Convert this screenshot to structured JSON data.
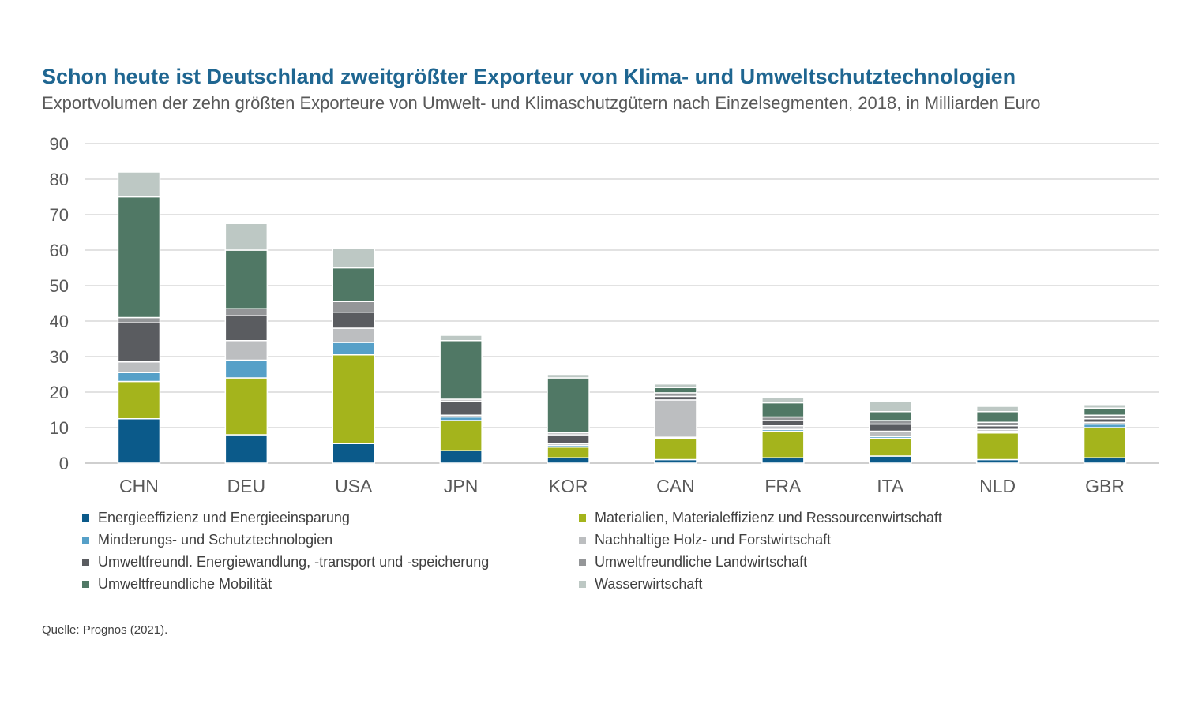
{
  "title": "Schon heute ist Deutschland zweitgrößter Exporteur von Klima- und Umweltschutztechnologien",
  "subtitle": "Exportvolumen der zehn größten Exporteure von Umwelt- und Klimaschutzgütern nach Einzelsegmenten, 2018, in Milliarden Euro",
  "source": "Quelle: Prognos (2021).",
  "chart_data": {
    "type": "bar",
    "stacked": true,
    "categories": [
      "CHN",
      "DEU",
      "USA",
      "JPN",
      "KOR",
      "CAN",
      "FRA",
      "ITA",
      "NLD",
      "GBR"
    ],
    "ylim": [
      0,
      90
    ],
    "yticks": [
      "0",
      "10",
      "20",
      "30",
      "40",
      "50",
      "60",
      "70",
      "80",
      "90"
    ],
    "grid": true,
    "legend_position": "bottom",
    "series": [
      {
        "name": "Energieeffizienz und Energieeinsparung",
        "color": "#0b5a8a",
        "values": [
          12.5,
          8.0,
          5.5,
          3.5,
          1.5,
          1.0,
          1.5,
          2.0,
          1.0,
          1.5
        ]
      },
      {
        "name": "Materialien, Materialeffizienz und Ressourcenwirtschaft",
        "color": "#a4b41c",
        "values": [
          10.5,
          16.0,
          25.0,
          8.5,
          3.0,
          6.0,
          7.5,
          5.0,
          7.5,
          8.5
        ]
      },
      {
        "name": "Minderungs- und Schutztechnologien",
        "color": "#56a0c8",
        "values": [
          2.5,
          5.0,
          3.5,
          1.0,
          0.5,
          0.3,
          0.5,
          0.5,
          0.5,
          1.0
        ]
      },
      {
        "name": "Nachhaltige Holz- und Forstwirtschaft",
        "color": "#bcbec0",
        "values": [
          3.0,
          5.5,
          4.0,
          0.5,
          0.5,
          10.5,
          1.0,
          1.5,
          0.5,
          0.5
        ]
      },
      {
        "name": "Umweltfreundl. Energiewandlung, -transport und -speicherung",
        "color": "#5a5c60",
        "values": [
          11.0,
          7.0,
          4.5,
          4.0,
          2.5,
          1.0,
          1.5,
          2.0,
          1.0,
          1.0
        ]
      },
      {
        "name": "Umweltfreundliche Landwirtschaft",
        "color": "#949698",
        "values": [
          1.5,
          2.0,
          3.0,
          0.5,
          0.5,
          1.0,
          1.0,
          1.0,
          1.0,
          1.0
        ]
      },
      {
        "name": "Umweltfreundliche Mobilität",
        "color": "#507865",
        "values": [
          34.0,
          16.5,
          9.5,
          16.5,
          15.5,
          1.5,
          4.0,
          2.5,
          3.0,
          2.0
        ]
      },
      {
        "name": "Wasserwirtschaft",
        "color": "#bdc8c4",
        "values": [
          7.0,
          7.5,
          5.5,
          1.5,
          1.0,
          1.0,
          1.5,
          3.0,
          1.5,
          1.0
        ]
      }
    ]
  }
}
